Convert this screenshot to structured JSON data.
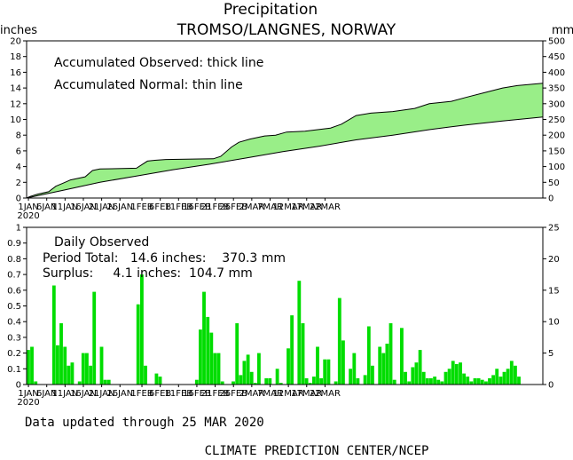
{
  "title_line1": "Precipitation",
  "title_line2": "TROMSO/LANGNES, NORWAY",
  "left_unit": "inches",
  "right_unit": "mm",
  "top_panel": {
    "note_observed": "Accumulated Observed: thick line",
    "note_normal": "Accumulated Normal: thin line"
  },
  "bottom_panel": {
    "label_daily": "Daily Observed",
    "label_period_total": "Period Total:   14.6 inches:    370.3 mm",
    "label_surplus": "Surplus:     4.1 inches:  104.7 mm"
  },
  "date_labels": [
    "1JAN",
    "6JAN",
    "11JAN",
    "16JAN",
    "21JAN",
    "26JAN",
    "1FEB",
    "6FEB",
    "11FEB",
    "16FEB",
    "21FEB",
    "26FEB",
    "2MAR",
    "7MAR",
    "12MAR",
    "17MAR",
    "22MAR"
  ],
  "year_label": "2020",
  "footer_updated": "Data updated through 25 MAR 2020",
  "footer_source": "CLIMATE PREDICTION CENTER/NCEP",
  "colors": {
    "fill": "#99ee88",
    "bar": "#00dd00",
    "line": "#000000"
  },
  "chart_data": [
    {
      "type": "area",
      "title": "Accumulated precipitation",
      "x_unit": "day of period (1 = 1 JAN 2020)",
      "ylabel_left": "inches",
      "ylabel_right": "mm",
      "ylim_left": [
        0,
        20
      ],
      "ylim_right": [
        0,
        500
      ],
      "yticks_left": [
        0,
        2,
        4,
        6,
        8,
        10,
        12,
        14,
        16,
        18,
        20
      ],
      "yticks_right": [
        0,
        50,
        100,
        150,
        200,
        250,
        300,
        350,
        400,
        450,
        500
      ],
      "series": [
        {
          "name": "Accumulated Observed",
          "points": [
            [
              0,
              0
            ],
            [
              1,
              0.2
            ],
            [
              3,
              0.5
            ],
            [
              6,
              0.8
            ],
            [
              8,
              1.5
            ],
            [
              10,
              1.9
            ],
            [
              12,
              2.3
            ],
            [
              16,
              2.7
            ],
            [
              18,
              3.5
            ],
            [
              20,
              3.7
            ],
            [
              30,
              3.8
            ],
            [
              33,
              4.7
            ],
            [
              35,
              4.8
            ],
            [
              38,
              4.9
            ],
            [
              51,
              5.0
            ],
            [
              53,
              5.3
            ],
            [
              56,
              6.5
            ],
            [
              58,
              7.1
            ],
            [
              61,
              7.5
            ],
            [
              65,
              7.9
            ],
            [
              68,
              8.0
            ],
            [
              71,
              8.4
            ],
            [
              76,
              8.5
            ],
            [
              83,
              8.9
            ],
            [
              86,
              9.4
            ],
            [
              90,
              10.5
            ],
            [
              94,
              10.8
            ],
            [
              100,
              11.0
            ],
            [
              106,
              11.4
            ],
            [
              110,
              12.0
            ],
            [
              116,
              12.3
            ],
            [
              120,
              12.8
            ],
            [
              125,
              13.4
            ],
            [
              130,
              14.0
            ],
            [
              134,
              14.3
            ],
            [
              141,
              14.6
            ]
          ]
        },
        {
          "name": "Accumulated Normal",
          "points": [
            [
              0,
              0
            ],
            [
              10,
              1.0
            ],
            [
              20,
              2.0
            ],
            [
              30,
              2.8
            ],
            [
              40,
              3.6
            ],
            [
              50,
              4.3
            ],
            [
              60,
              5.1
            ],
            [
              70,
              5.9
            ],
            [
              80,
              6.6
            ],
            [
              90,
              7.4
            ],
            [
              100,
              8.0
            ],
            [
              110,
              8.7
            ],
            [
              120,
              9.3
            ],
            [
              130,
              9.8
            ],
            [
              141,
              10.3
            ]
          ]
        }
      ]
    },
    {
      "type": "bar",
      "title": "Daily Observed",
      "x_unit": "day of period (1 = 1 JAN 2020)",
      "ylabel_left": "inches",
      "ylabel_right": "mm",
      "ylim_left": [
        0,
        1
      ],
      "ylim_right": [
        0,
        25
      ],
      "yticks_left": [
        0,
        0.1,
        0.2,
        0.3,
        0.4,
        0.5,
        0.6,
        0.7,
        0.8,
        0.9,
        1
      ],
      "yticks_right": [
        0,
        5,
        10,
        15,
        20,
        25
      ],
      "x": [
        1,
        2,
        3,
        8,
        9,
        10,
        11,
        12,
        13,
        15,
        16,
        17,
        18,
        19,
        21,
        22,
        23,
        31,
        32,
        33,
        36,
        37,
        47,
        48,
        49,
        50,
        51,
        52,
        53,
        54,
        57,
        58,
        59,
        60,
        61,
        62,
        63,
        64,
        66,
        67,
        69,
        70,
        72,
        73,
        75,
        76,
        77,
        78,
        79,
        80,
        81,
        82,
        83,
        85,
        86,
        87,
        89,
        90,
        91,
        93,
        94,
        95,
        97,
        98,
        99,
        100,
        101,
        103,
        104,
        105,
        106,
        107,
        108,
        109,
        110,
        111,
        112,
        113,
        114,
        115,
        116,
        117,
        118,
        119,
        120,
        121,
        122,
        123,
        124,
        125,
        126,
        127,
        128,
        129,
        130,
        131,
        132,
        133,
        134,
        135
      ],
      "values": [
        0.22,
        0.24,
        0.02,
        0.63,
        0.25,
        0.39,
        0.24,
        0.12,
        0.14,
        0.02,
        0.2,
        0.2,
        0.12,
        0.59,
        0.24,
        0.03,
        0.03,
        0.51,
        0.7,
        0.12,
        0.07,
        0.05,
        0.03,
        0.35,
        0.59,
        0.43,
        0.33,
        0.2,
        0.2,
        0.02,
        0.02,
        0.39,
        0.06,
        0.15,
        0.19,
        0.08,
        0.01,
        0.2,
        0.04,
        0.04,
        0.1,
        0.01,
        0.23,
        0.44,
        0.66,
        0.39,
        0.04,
        0.01,
        0.05,
        0.24,
        0.04,
        0.16,
        0.16,
        0.02,
        0.55,
        0.28,
        0.1,
        0.2,
        0.04,
        0.06,
        0.37,
        0.12,
        0.24,
        0.2,
        0.26,
        0.39,
        0.03,
        0.36,
        0.08,
        0.02,
        0.11,
        0.14,
        0.22,
        0.08,
        0.04,
        0.04,
        0.05,
        0.03,
        0.02,
        0.08,
        0.1,
        0.15,
        0.13,
        0.14,
        0.07,
        0.05,
        0.02,
        0.04,
        0.04,
        0.03,
        0.02,
        0.04,
        0.06,
        0.1,
        0.05,
        0.08,
        0.1,
        0.15,
        0.12,
        0.05
      ]
    }
  ]
}
